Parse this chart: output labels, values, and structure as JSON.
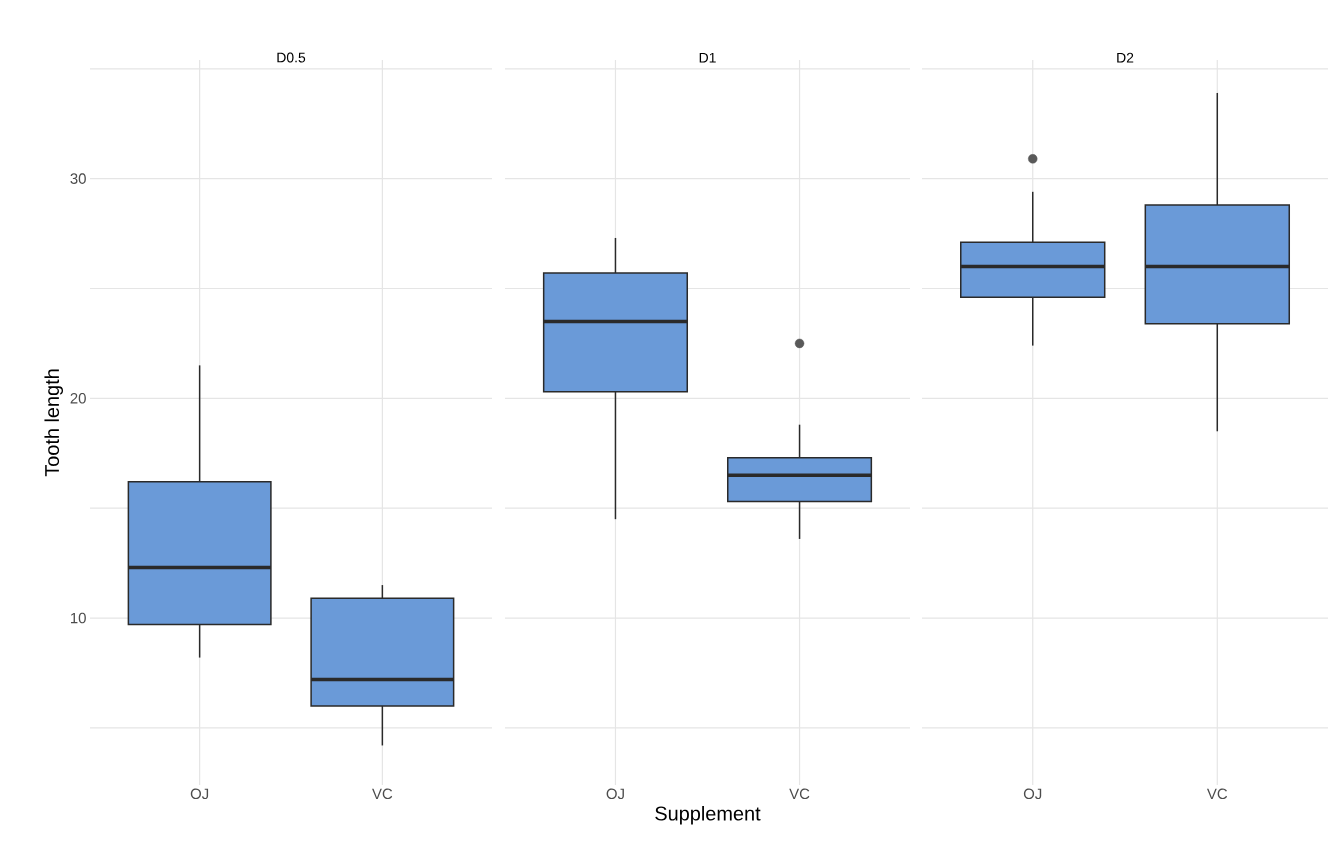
{
  "chart_data": [
    {
      "type": "box",
      "title": "D0.5",
      "ylabel": "Tooth length",
      "categories": [
        "OJ",
        "VC"
      ],
      "color": "#6a9ad8",
      "boxes": [
        {
          "low": 8.2,
          "q1": 9.7,
          "median": 12.3,
          "q3": 16.2,
          "high": 21.5
        },
        {
          "low": 4.2,
          "q1": 6.0,
          "median": 7.2,
          "q3": 10.9,
          "high": 11.5
        }
      ],
      "ylim": [
        2.4,
        35.4
      ],
      "yticks": [
        {
          "value": 5,
          "label": null
        },
        10,
        {
          "value": 15,
          "label": null
        },
        20,
        {
          "value": 25,
          "label": null
        },
        30,
        {
          "value": 35,
          "label": null
        }
      ],
      "grid": true
    },
    {
      "type": "box",
      "title": "D1",
      "xlabel": "Supplement",
      "categories": [
        "OJ",
        "VC"
      ],
      "color": "#6a9ad8",
      "boxes": [
        {
          "low": 14.5,
          "q1": 20.3,
          "median": 23.5,
          "q3": 25.7,
          "high": 27.3
        },
        {
          "low": 13.6,
          "q1": 15.3,
          "median": 16.5,
          "q3": 17.3,
          "high": 18.8,
          "outliers": [
            22.5
          ]
        }
      ],
      "ylim": [
        2.4,
        35.4
      ],
      "yticks": [
        {
          "value": 5,
          "label": null
        },
        10,
        {
          "value": 15,
          "label": null
        },
        20,
        {
          "value": 25,
          "label": null
        },
        30,
        {
          "value": 35,
          "label": null
        }
      ],
      "grid": true,
      "tick_labels": "x"
    },
    {
      "type": "box",
      "title": "D2",
      "categories": [
        "OJ",
        "VC"
      ],
      "color": "#6a9ad8",
      "boxes": [
        {
          "low": 22.4,
          "q1": 24.6,
          "median": 26.0,
          "q3": 27.1,
          "high": 29.4,
          "outliers": [
            30.9
          ]
        },
        {
          "low": 18.5,
          "q1": 23.4,
          "median": 26.0,
          "q3": 28.8,
          "high": 33.9
        }
      ],
      "ylim": [
        2.4,
        35.4
      ],
      "yticks": [
        {
          "value": 5,
          "label": null
        },
        10,
        {
          "value": 15,
          "label": null
        },
        20,
        {
          "value": 25,
          "label": null
        },
        30,
        {
          "value": 35,
          "label": null
        }
      ],
      "grid": true,
      "tick_labels": "x"
    }
  ]
}
